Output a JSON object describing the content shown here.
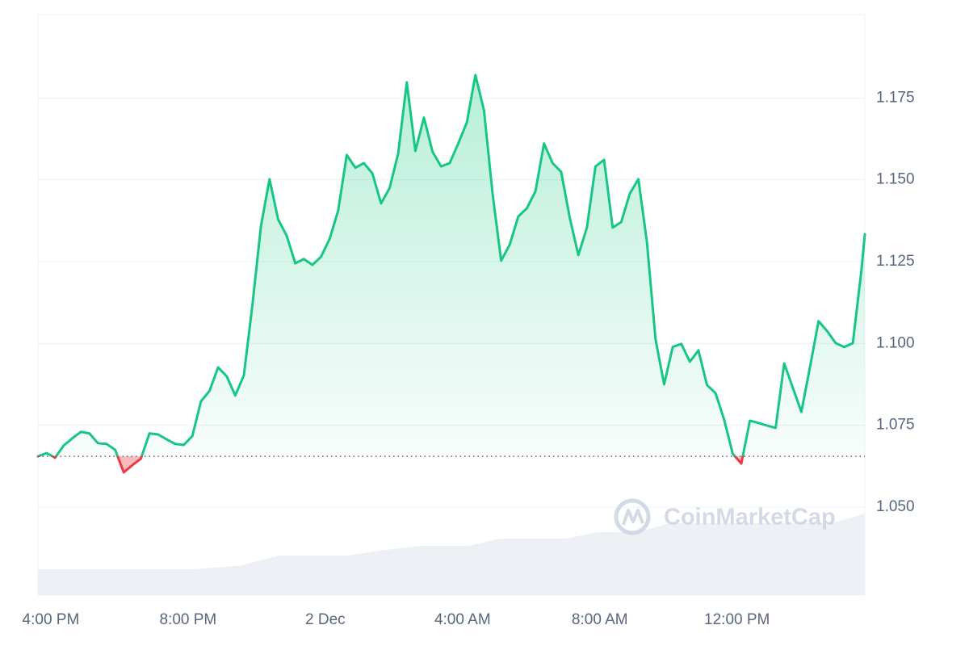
{
  "chart_data": {
    "type": "line",
    "x": [
      -0.375,
      -0.125,
      0.125,
      0.375,
      0.625,
      0.875,
      1.125,
      1.375,
      1.625,
      1.875,
      2.125,
      2.375,
      2.625,
      2.875,
      3.125,
      3.375,
      3.625,
      3.875,
      4.125,
      4.375,
      4.625,
      4.875,
      5.125,
      5.375,
      5.625,
      5.875,
      6.125,
      6.375,
      6.625,
      6.875,
      7.125,
      7.375,
      7.625,
      7.875,
      8.125,
      8.375,
      8.625,
      8.875,
      9.125,
      9.375,
      9.625,
      9.875,
      10.125,
      10.375,
      10.625,
      10.875,
      11.125,
      11.375,
      11.625,
      11.875,
      12.125,
      12.375,
      12.625,
      12.875,
      13.125,
      13.375,
      13.625,
      13.875,
      14.125,
      14.375,
      14.625,
      14.875,
      15.125,
      15.375,
      15.625,
      15.875,
      16.125,
      16.375,
      16.625,
      16.875,
      17.125,
      17.375,
      17.625,
      17.875,
      18.125,
      18.375,
      18.625,
      18.875,
      19.125,
      19.375,
      19.625,
      19.875,
      20.125,
      20.375,
      20.625,
      20.875,
      21.125,
      21.375,
      21.625,
      21.875,
      22.125,
      22.375,
      22.625,
      22.875,
      23.125,
      23.375,
      23.625,
      23.725
    ],
    "values": [
      1.0655,
      1.0665,
      1.0651,
      1.0688,
      1.071,
      1.073,
      1.0725,
      1.0695,
      1.0693,
      1.0675,
      1.0606,
      1.0628,
      1.0648,
      1.0725,
      1.0722,
      1.0707,
      1.0693,
      1.069,
      1.0717,
      1.0823,
      1.0855,
      1.0927,
      1.09,
      1.0841,
      1.0902,
      1.1117,
      1.1359,
      1.1502,
      1.1379,
      1.1329,
      1.1245,
      1.1258,
      1.124,
      1.1265,
      1.1319,
      1.1406,
      1.1576,
      1.1537,
      1.1551,
      1.1519,
      1.1428,
      1.1475,
      1.1581,
      1.1798,
      1.1588,
      1.169,
      1.1586,
      1.1541,
      1.1551,
      1.1611,
      1.1675,
      1.182,
      1.1712,
      1.1458,
      1.1253,
      1.1302,
      1.1388,
      1.1413,
      1.1465,
      1.1611,
      1.1551,
      1.1524,
      1.1384,
      1.127,
      1.1354,
      1.1541,
      1.1561,
      1.1354,
      1.1371,
      1.1458,
      1.1502,
      1.1309,
      1.1013,
      1.0875,
      1.0989,
      1.0999,
      1.0944,
      1.0979,
      1.0873,
      1.0848,
      1.0767,
      1.0663,
      1.0633,
      1.0764,
      1.0757,
      1.0749,
      1.0742,
      1.0939,
      1.0865,
      1.0791,
      1.0927,
      1.1068,
      1.1038,
      1.1001,
      1.0989,
      1.1001,
      1.1223,
      1.1334
    ],
    "reference_line": 1.0655,
    "up_color": "#16c784",
    "down_color": "#ea3943",
    "xlim": [
      -0.375,
      23.725
    ],
    "xticks": [
      {
        "value": 0,
        "label": "4:00 PM"
      },
      {
        "value": 4,
        "label": "8:00 PM"
      },
      {
        "value": 8,
        "label": "2 Dec"
      },
      {
        "value": 12,
        "label": "4:00 AM"
      },
      {
        "value": 16,
        "label": "8:00 AM"
      },
      {
        "value": 20,
        "label": "12:00 PM"
      }
    ],
    "ylim": [
      1.0231,
      1.2005
    ],
    "yticks": [
      {
        "value": 1.05,
        "label": "1.050"
      },
      1.075,
      {
        "value": 1.1,
        "label": "1.100"
      },
      1.125,
      {
        "value": 1.15,
        "label": "1.150"
      },
      1.175
    ],
    "grid": true,
    "watermark": "CoinMarketCap"
  }
}
